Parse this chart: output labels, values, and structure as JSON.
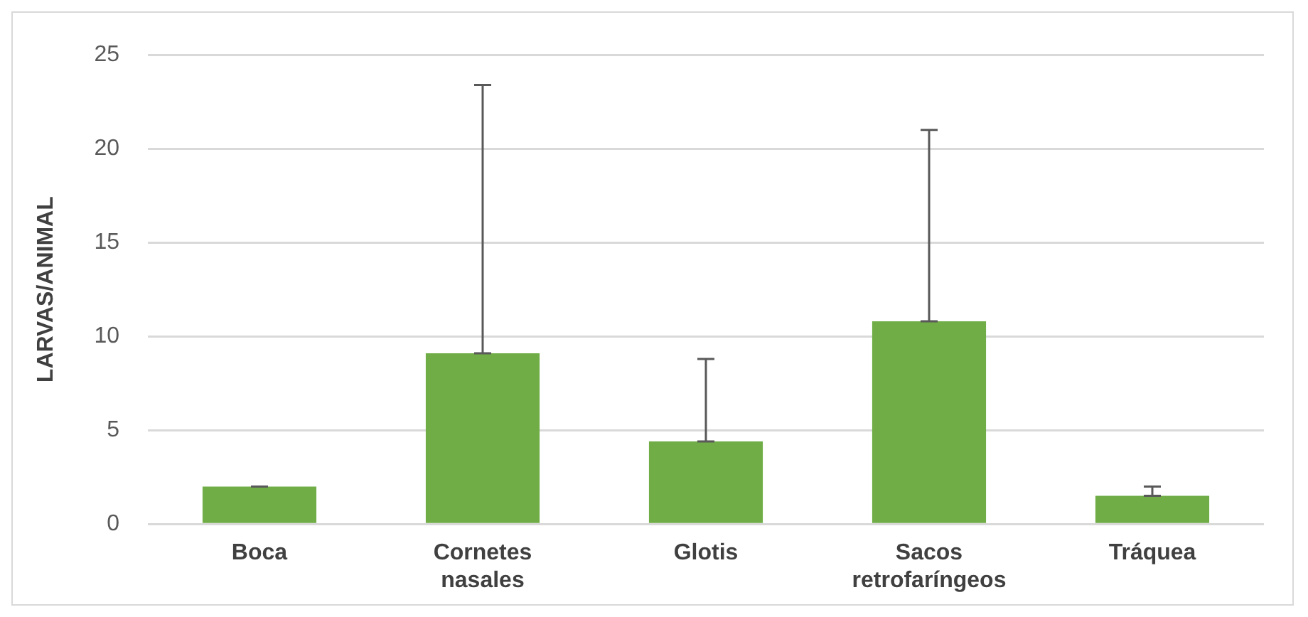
{
  "chart_data": {
    "type": "bar",
    "ylabel": "LARVAS/ANIMAL",
    "categories": [
      "Boca",
      "Cornetes nasales",
      "Glotis",
      "Sacos retrofaríngeos",
      "Tráquea"
    ],
    "values": [
      2.0,
      9.1,
      4.4,
      10.8,
      1.5
    ],
    "errors": [
      [
        2.0,
        2.0
      ],
      [
        9.1,
        23.4
      ],
      [
        4.4,
        8.8
      ],
      [
        10.8,
        21.0
      ],
      [
        1.5,
        2.0
      ]
    ],
    "color": "#70ad47",
    "ylim": [
      0,
      25
    ],
    "yticks": [
      0,
      5,
      10,
      15,
      20,
      25
    ],
    "grid": "y"
  }
}
